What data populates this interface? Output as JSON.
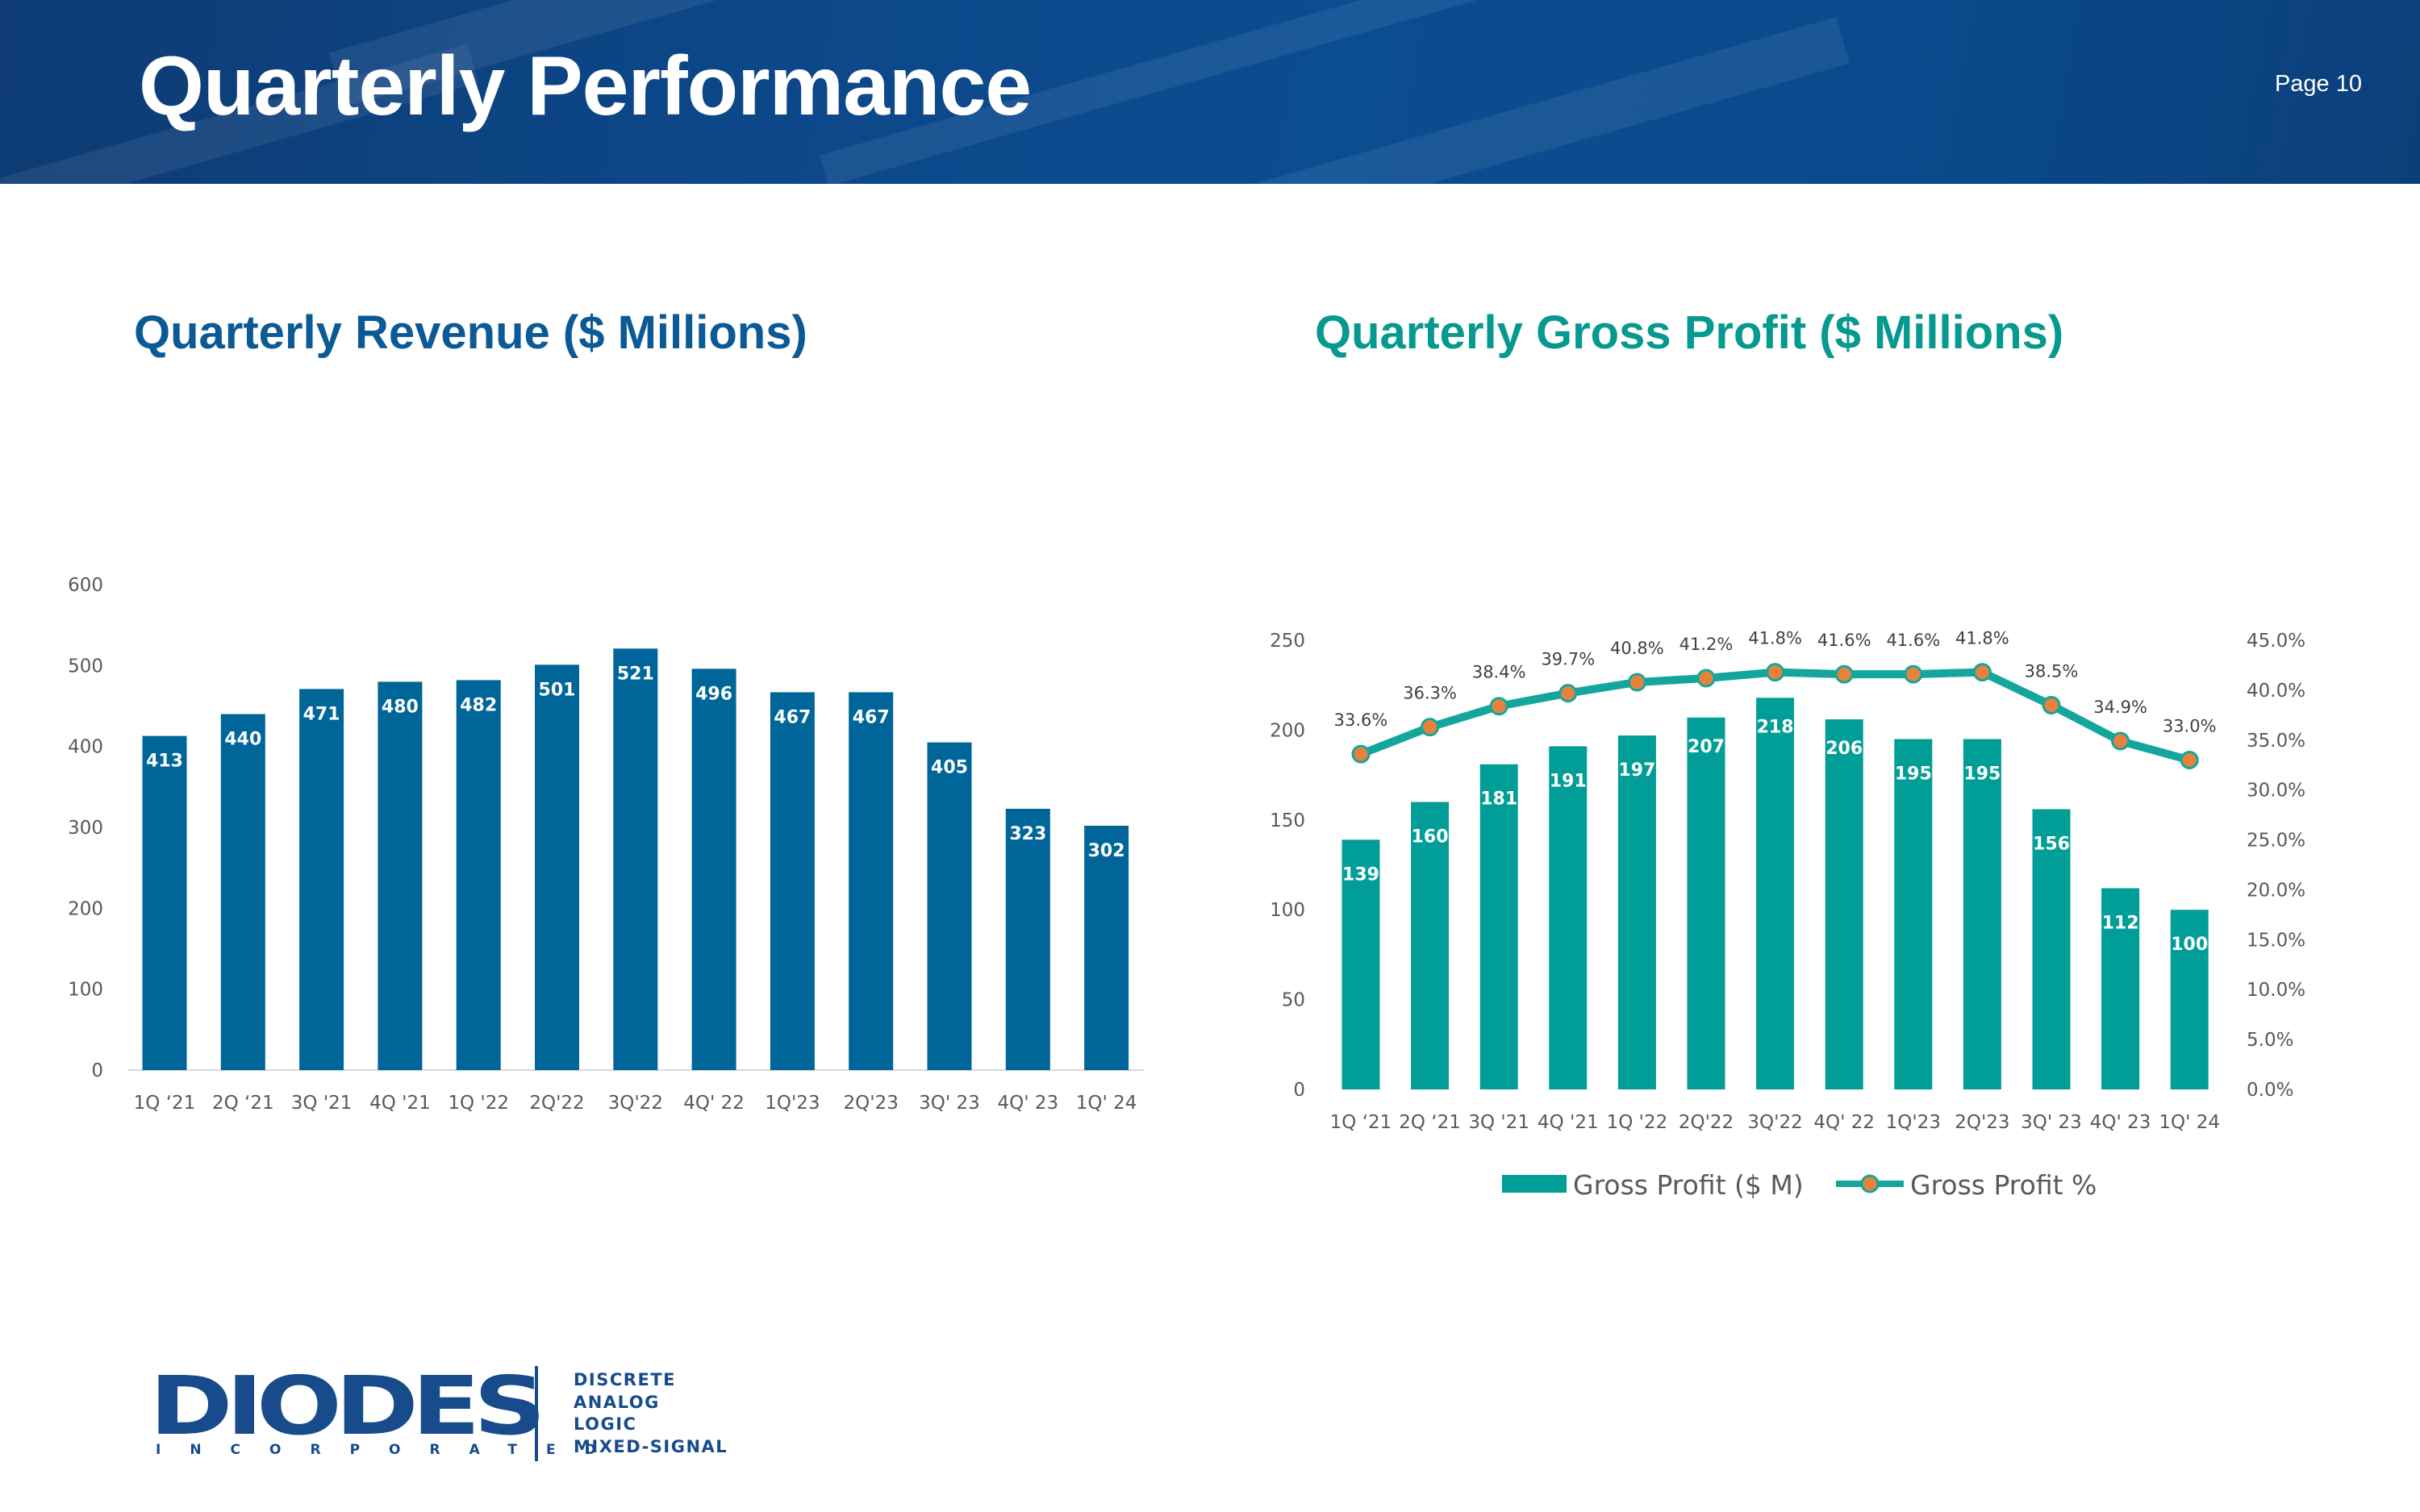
{
  "header": {
    "title": "Quarterly Performance",
    "page": "Page 10"
  },
  "revenue_title": "Quarterly Revenue ($ Millions)",
  "gross_profit_title": "Quarterly Gross Profit ($ Millions)",
  "colors": {
    "header": "#0b4d91",
    "revenue_bar": "#006699",
    "revenue_title": "#0b5a96",
    "gp_bar": "#009e96",
    "gp_title": "#06998f",
    "gp_line": "#14a69c",
    "gp_marker": "#e6823c",
    "logo": "#174b8c"
  },
  "logo": {
    "name": "DIODES",
    "sub": "INCORPORATED",
    "tags": [
      "DISCRETE",
      "ANALOG",
      "LOGIC",
      "MIXED-SIGNAL"
    ]
  },
  "chart_data": [
    {
      "type": "bar",
      "title": "Quarterly Revenue ($ Millions)",
      "categories": [
        "1Q ‘21",
        "2Q ‘21",
        "3Q '21",
        "4Q '21",
        "1Q '22",
        "2Q'22",
        "3Q'22",
        "4Q' 22",
        "1Q'23",
        "2Q'23",
        "3Q' 23",
        "4Q' 23",
        "1Q' 24"
      ],
      "values": [
        413,
        440,
        471,
        480,
        482,
        501,
        521,
        496,
        467,
        467,
        405,
        323,
        302
      ],
      "ylim": [
        0,
        600
      ],
      "yticks": [
        0,
        100,
        200,
        300,
        400,
        500,
        600
      ],
      "grid": false,
      "legend": "none"
    },
    {
      "type": "bar",
      "title": "Quarterly Gross Profit ($ Millions)",
      "categories": [
        "1Q ‘21",
        "2Q ‘21",
        "3Q '21",
        "4Q '21",
        "1Q '22",
        "2Q'22",
        "3Q'22",
        "4Q' 22",
        "1Q'23",
        "2Q'23",
        "3Q' 23",
        "4Q' 23",
        "1Q' 24"
      ],
      "series": [
        {
          "name": "Gross Profit ($ M)",
          "type": "bar",
          "axis": "left",
          "values": [
            139,
            160,
            181,
            191,
            197,
            207,
            218,
            206,
            195,
            195,
            156,
            112,
            100
          ]
        },
        {
          "name": "Gross Profit %",
          "type": "line",
          "axis": "right",
          "values": [
            33.6,
            36.3,
            38.4,
            39.7,
            40.8,
            41.2,
            41.8,
            41.6,
            41.6,
            41.8,
            38.5,
            34.9,
            33.0
          ],
          "labels": [
            "33.6%",
            "36.3%",
            "38.4%",
            "39.7%",
            "40.8%",
            "41.2%",
            "41.8%",
            "41.6%",
            "41.6%",
            "41.8%",
            "38.5%",
            "34.9%",
            "33.0%"
          ]
        }
      ],
      "ylim": [
        0,
        250
      ],
      "yticks": [
        0,
        50,
        100,
        150,
        200,
        250
      ],
      "y2lim": [
        0,
        45
      ],
      "y2ticks": [
        "0.0%",
        "5.0%",
        "10.0%",
        "15.0%",
        "20.0%",
        "25.0%",
        "30.0%",
        "35.0%",
        "40.0%",
        "45.0%"
      ],
      "grid": false,
      "legend": "bottom"
    }
  ]
}
